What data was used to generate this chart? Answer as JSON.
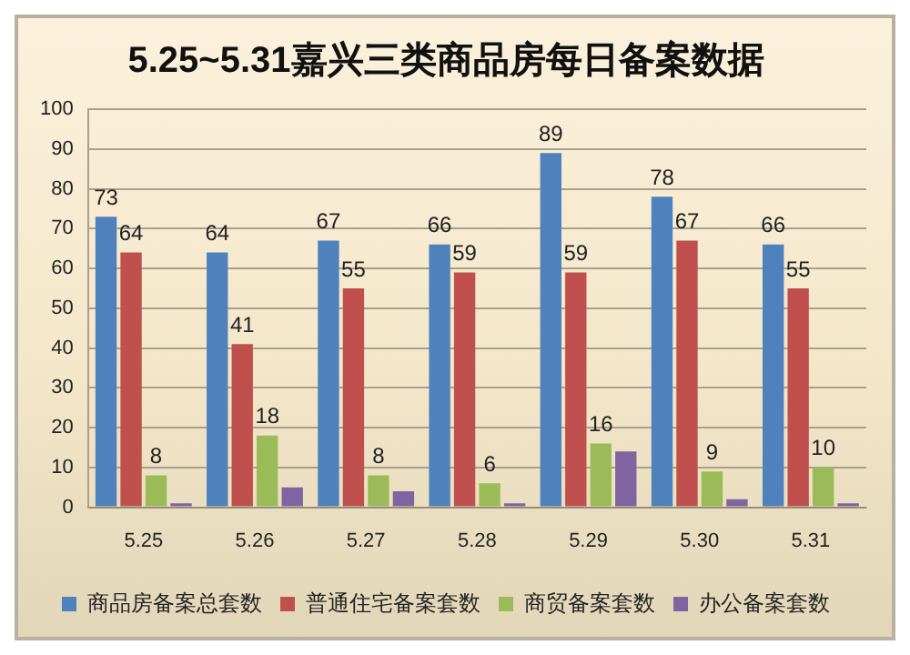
{
  "chart_data": {
    "type": "bar",
    "title": "5.25~5.31嘉兴三类商品房每日备案数据",
    "categories": [
      "5.25",
      "5.26",
      "5.27",
      "5.28",
      "5.29",
      "5.30",
      "5.31"
    ],
    "series": [
      {
        "name": "商品房备案总套数",
        "color": "#4f81bd",
        "values": [
          73,
          64,
          67,
          66,
          89,
          78,
          66
        ],
        "value_labels": [
          "73",
          "64",
          "67",
          "66",
          "89",
          "78",
          "66"
        ]
      },
      {
        "name": "普通住宅备案套数",
        "color": "#c0504d",
        "values": [
          64,
          41,
          55,
          59,
          59,
          67,
          55
        ],
        "value_labels": [
          "64",
          "41",
          "55",
          "59",
          "59",
          "67",
          "55"
        ]
      },
      {
        "name": "商贸备案套数",
        "color": "#9bbb59",
        "values": [
          8,
          18,
          8,
          6,
          16,
          9,
          10
        ],
        "value_labels": [
          "8",
          "18",
          "8",
          "6",
          "16",
          "9",
          "10"
        ]
      },
      {
        "name": "办公备案套数",
        "color": "#8064a2",
        "values": [
          1,
          5,
          4,
          1,
          14,
          2,
          1
        ]
      }
    ],
    "ylim": [
      0,
      100
    ],
    "yticks": [
      0,
      10,
      20,
      30,
      40,
      50,
      60,
      70,
      80,
      90,
      100
    ],
    "grid": "y",
    "legend": "bottom"
  }
}
